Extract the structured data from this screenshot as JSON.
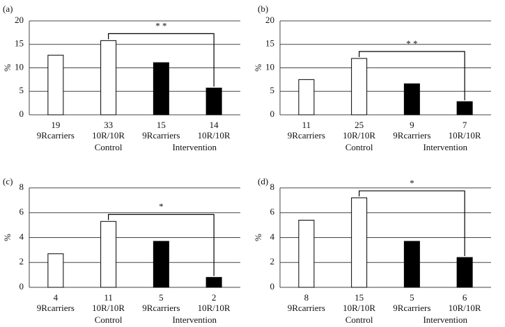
{
  "chart_data": [
    {
      "type": "bar",
      "title": "(a)",
      "ylabel": "%",
      "annotation": "* *",
      "grid": true,
      "categories": [
        "9Rcarriers",
        "10R/10R",
        "9Rcarriers",
        "10R/10R"
      ],
      "n_labels": [
        "19",
        "33",
        "15",
        "14"
      ],
      "series": [
        {
          "name": "Control",
          "color": "#ffffff",
          "values": [
            12.7,
            15.8,
            null,
            null
          ]
        },
        {
          "name": "Intervention",
          "color": "#000000",
          "values": [
            null,
            null,
            11.1,
            5.7
          ]
        }
      ],
      "ylim": [
        0,
        20
      ],
      "yticks": [
        0,
        5,
        10,
        15,
        20
      ]
    },
    {
      "type": "bar",
      "title": "(b)",
      "ylabel": "%",
      "annotation": "* *",
      "grid": true,
      "categories": [
        "9Rcarriers",
        "10R/10R",
        "9Rcarriers",
        "10R/10R"
      ],
      "n_labels": [
        "11",
        "25",
        "9",
        "7"
      ],
      "series": [
        {
          "name": "Control",
          "color": "#ffffff",
          "values": [
            7.5,
            12.0,
            null,
            null
          ]
        },
        {
          "name": "Intervention",
          "color": "#000000",
          "values": [
            null,
            null,
            6.6,
            2.8
          ]
        }
      ],
      "ylim": [
        0,
        20
      ],
      "yticks": [
        0,
        5,
        10,
        15,
        20
      ]
    },
    {
      "type": "bar",
      "title": "(c)",
      "ylabel": "%",
      "annotation": "*",
      "grid": true,
      "categories": [
        "9Rcarriers",
        "10R/10R",
        "9Rcarriers",
        "10R/10R"
      ],
      "n_labels": [
        "4",
        "11",
        "5",
        "2"
      ],
      "series": [
        {
          "name": "Control",
          "color": "#ffffff",
          "values": [
            2.7,
            5.3,
            null,
            null
          ]
        },
        {
          "name": "Intervention",
          "color": "#000000",
          "values": [
            null,
            null,
            3.7,
            0.8
          ]
        }
      ],
      "ylim": [
        0,
        8
      ],
      "yticks": [
        0,
        2,
        4,
        6,
        8
      ]
    },
    {
      "type": "bar",
      "title": "(d)",
      "ylabel": "%",
      "annotation": "*",
      "grid": true,
      "categories": [
        "9Rcarriers",
        "10R/10R",
        "9Rcarriers",
        "10R/10R"
      ],
      "n_labels": [
        "8",
        "15",
        "5",
        "6"
      ],
      "series": [
        {
          "name": "Control",
          "color": "#ffffff",
          "values": [
            5.4,
            7.2,
            null,
            null
          ]
        },
        {
          "name": "Intervention",
          "color": "#000000",
          "values": [
            null,
            null,
            3.7,
            2.4
          ]
        }
      ],
      "ylim": [
        0,
        8
      ],
      "yticks": [
        0,
        2,
        4,
        6,
        8
      ]
    }
  ]
}
